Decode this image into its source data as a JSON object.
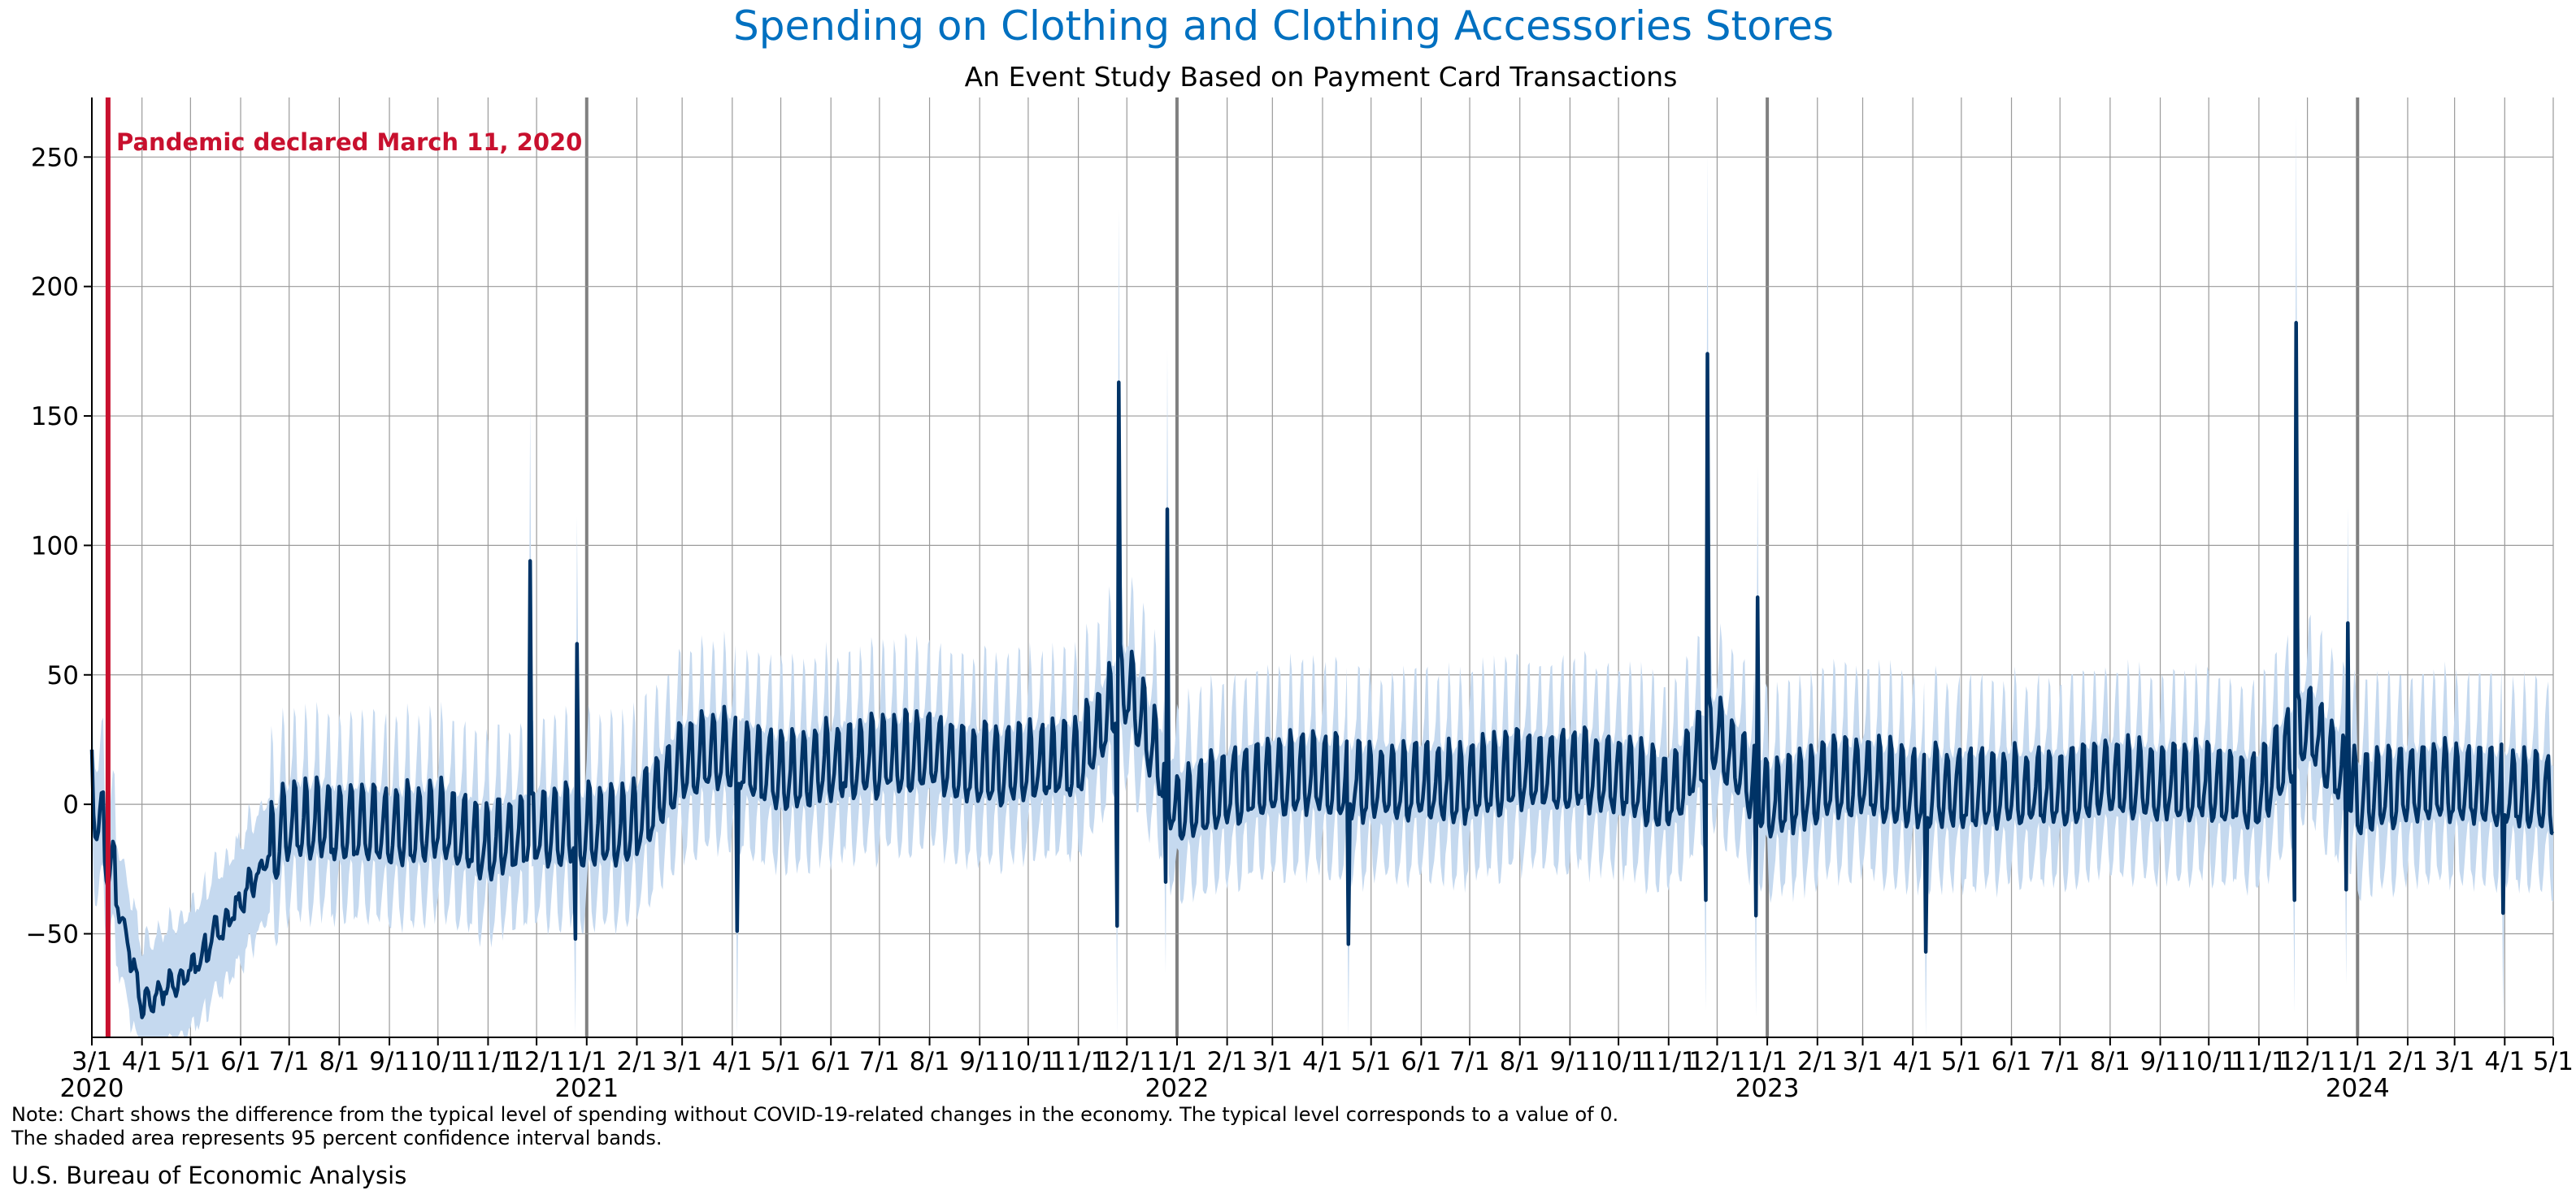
{
  "chart_data": {
    "type": "line",
    "title": "Spending on Clothing and Clothing Accessories Stores",
    "subtitle": "An Event Study Based on Payment Card Transactions",
    "xlabel": "",
    "ylabel": "",
    "ylim": [
      -90,
      273
    ],
    "yticks": [
      -50,
      0,
      50,
      100,
      150,
      200,
      250
    ],
    "x_range": [
      "2020-03-01",
      "2024-05-01"
    ],
    "grid": true,
    "band": "95 percent confidence interval",
    "colors": {
      "title": "#0070C0",
      "line": "#003366",
      "band": "#C5D9EF",
      "event": "#C8102E",
      "year_line": "#808080",
      "grid": "#9a9a9a"
    },
    "event": {
      "date": "2020-03-11",
      "label": "Pandemic declared March 11, 2020"
    },
    "month_ticks": [
      "3/1",
      "4/1",
      "5/1",
      "6/1",
      "7/1",
      "8/1",
      "9/1",
      "10/1",
      "11/1",
      "12/1",
      "1/1",
      "2/1",
      "3/1",
      "4/1",
      "5/1",
      "6/1",
      "7/1",
      "8/1",
      "9/1",
      "10/1",
      "11/1",
      "12/1",
      "1/1",
      "2/1",
      "3/1",
      "4/1",
      "5/1",
      "6/1",
      "7/1",
      "8/1",
      "9/1",
      "10/1",
      "11/1",
      "12/1",
      "1/1",
      "2/1",
      "3/1",
      "4/1",
      "5/1",
      "6/1",
      "7/1",
      "8/1",
      "9/1",
      "10/1",
      "11/1",
      "12/1",
      "1/1",
      "2/1",
      "3/1",
      "4/1",
      "5/1"
    ],
    "year_labels": [
      {
        "date": "2020-03-01",
        "label": "2020"
      },
      {
        "date": "2021-01-01",
        "label": "2021"
      },
      {
        "date": "2022-01-01",
        "label": "2022"
      },
      {
        "date": "2023-01-01",
        "label": "2023"
      },
      {
        "date": "2024-01-01",
        "label": "2024"
      }
    ],
    "series": [
      {
        "values_by_month": [
          [
            "2020-03-01",
            5
          ],
          [
            "2020-04-01",
            -78
          ],
          [
            "2020-05-01",
            -65
          ],
          [
            "2020-06-01",
            -38
          ],
          [
            "2020-07-01",
            -8
          ],
          [
            "2020-08-01",
            -10
          ],
          [
            "2020-09-01",
            -13
          ],
          [
            "2020-10-01",
            -9
          ],
          [
            "2020-11-01",
            -18
          ],
          [
            "2020-12-01",
            -12
          ],
          [
            "2021-01-01",
            -12
          ],
          [
            "2021-02-01",
            -10
          ],
          [
            "2021-03-01",
            15
          ],
          [
            "2021-04-01",
            18
          ],
          [
            "2021-05-01",
            8
          ],
          [
            "2021-06-01",
            14
          ],
          [
            "2021-07-01",
            15
          ],
          [
            "2021-08-01",
            17
          ],
          [
            "2021-09-01",
            12
          ],
          [
            "2021-10-01",
            12
          ],
          [
            "2021-11-01",
            15
          ],
          [
            "2021-12-01",
            45
          ],
          [
            "2022-01-01",
            -5
          ],
          [
            "2022-02-01",
            3
          ],
          [
            "2022-03-01",
            8
          ],
          [
            "2022-04-01",
            8
          ],
          [
            "2022-05-01",
            5
          ],
          [
            "2022-06-01",
            5
          ],
          [
            "2022-07-01",
            5
          ],
          [
            "2022-08-01",
            10
          ],
          [
            "2022-09-01",
            10
          ],
          [
            "2022-10-01",
            8
          ],
          [
            "2022-11-01",
            2
          ],
          [
            "2022-12-01",
            25
          ],
          [
            "2023-01-01",
            -3
          ],
          [
            "2023-02-01",
            5
          ],
          [
            "2023-03-01",
            8
          ],
          [
            "2023-04-01",
            3
          ],
          [
            "2023-05-01",
            3
          ],
          [
            "2023-06-01",
            3
          ],
          [
            "2023-07-01",
            3
          ],
          [
            "2023-08-01",
            8
          ],
          [
            "2023-09-01",
            5
          ],
          [
            "2023-10-01",
            5
          ],
          [
            "2023-11-01",
            2
          ],
          [
            "2023-12-01",
            30
          ],
          [
            "2024-01-01",
            0
          ],
          [
            "2024-02-01",
            5
          ],
          [
            "2024-03-01",
            5
          ],
          [
            "2024-04-01",
            3
          ],
          [
            "2024-05-01",
            0
          ]
        ],
        "spikes": [
          [
            "2020-11-27",
            94
          ],
          [
            "2020-12-26",
            62
          ],
          [
            "2021-11-26",
            163
          ],
          [
            "2021-12-26",
            114
          ],
          [
            "2022-11-25",
            174
          ],
          [
            "2022-12-26",
            80
          ],
          [
            "2023-11-24",
            186
          ],
          [
            "2023-12-26",
            70
          ]
        ],
        "dips": [
          [
            "2020-12-25",
            -52
          ],
          [
            "2021-04-04",
            -49
          ],
          [
            "2021-11-25",
            -47
          ],
          [
            "2021-12-25",
            -30
          ],
          [
            "2022-04-17",
            -54
          ],
          [
            "2022-11-24",
            -37
          ],
          [
            "2022-12-25",
            -43
          ],
          [
            "2023-04-09",
            -57
          ],
          [
            "2023-11-23",
            -37
          ],
          [
            "2023-12-25",
            -33
          ],
          [
            "2024-03-31",
            -42
          ]
        ],
        "weekly_amplitude": 18,
        "ci_halfwidth": 22
      }
    ]
  },
  "note_line1": "Note: Chart shows the difference from the typical level of spending without COVID-19-related changes in the economy. The typical level corresponds to a value of 0.",
  "note_line2": "The shaded area represents 95 percent confidence interval bands.",
  "source": "U.S. Bureau of Economic Analysis"
}
